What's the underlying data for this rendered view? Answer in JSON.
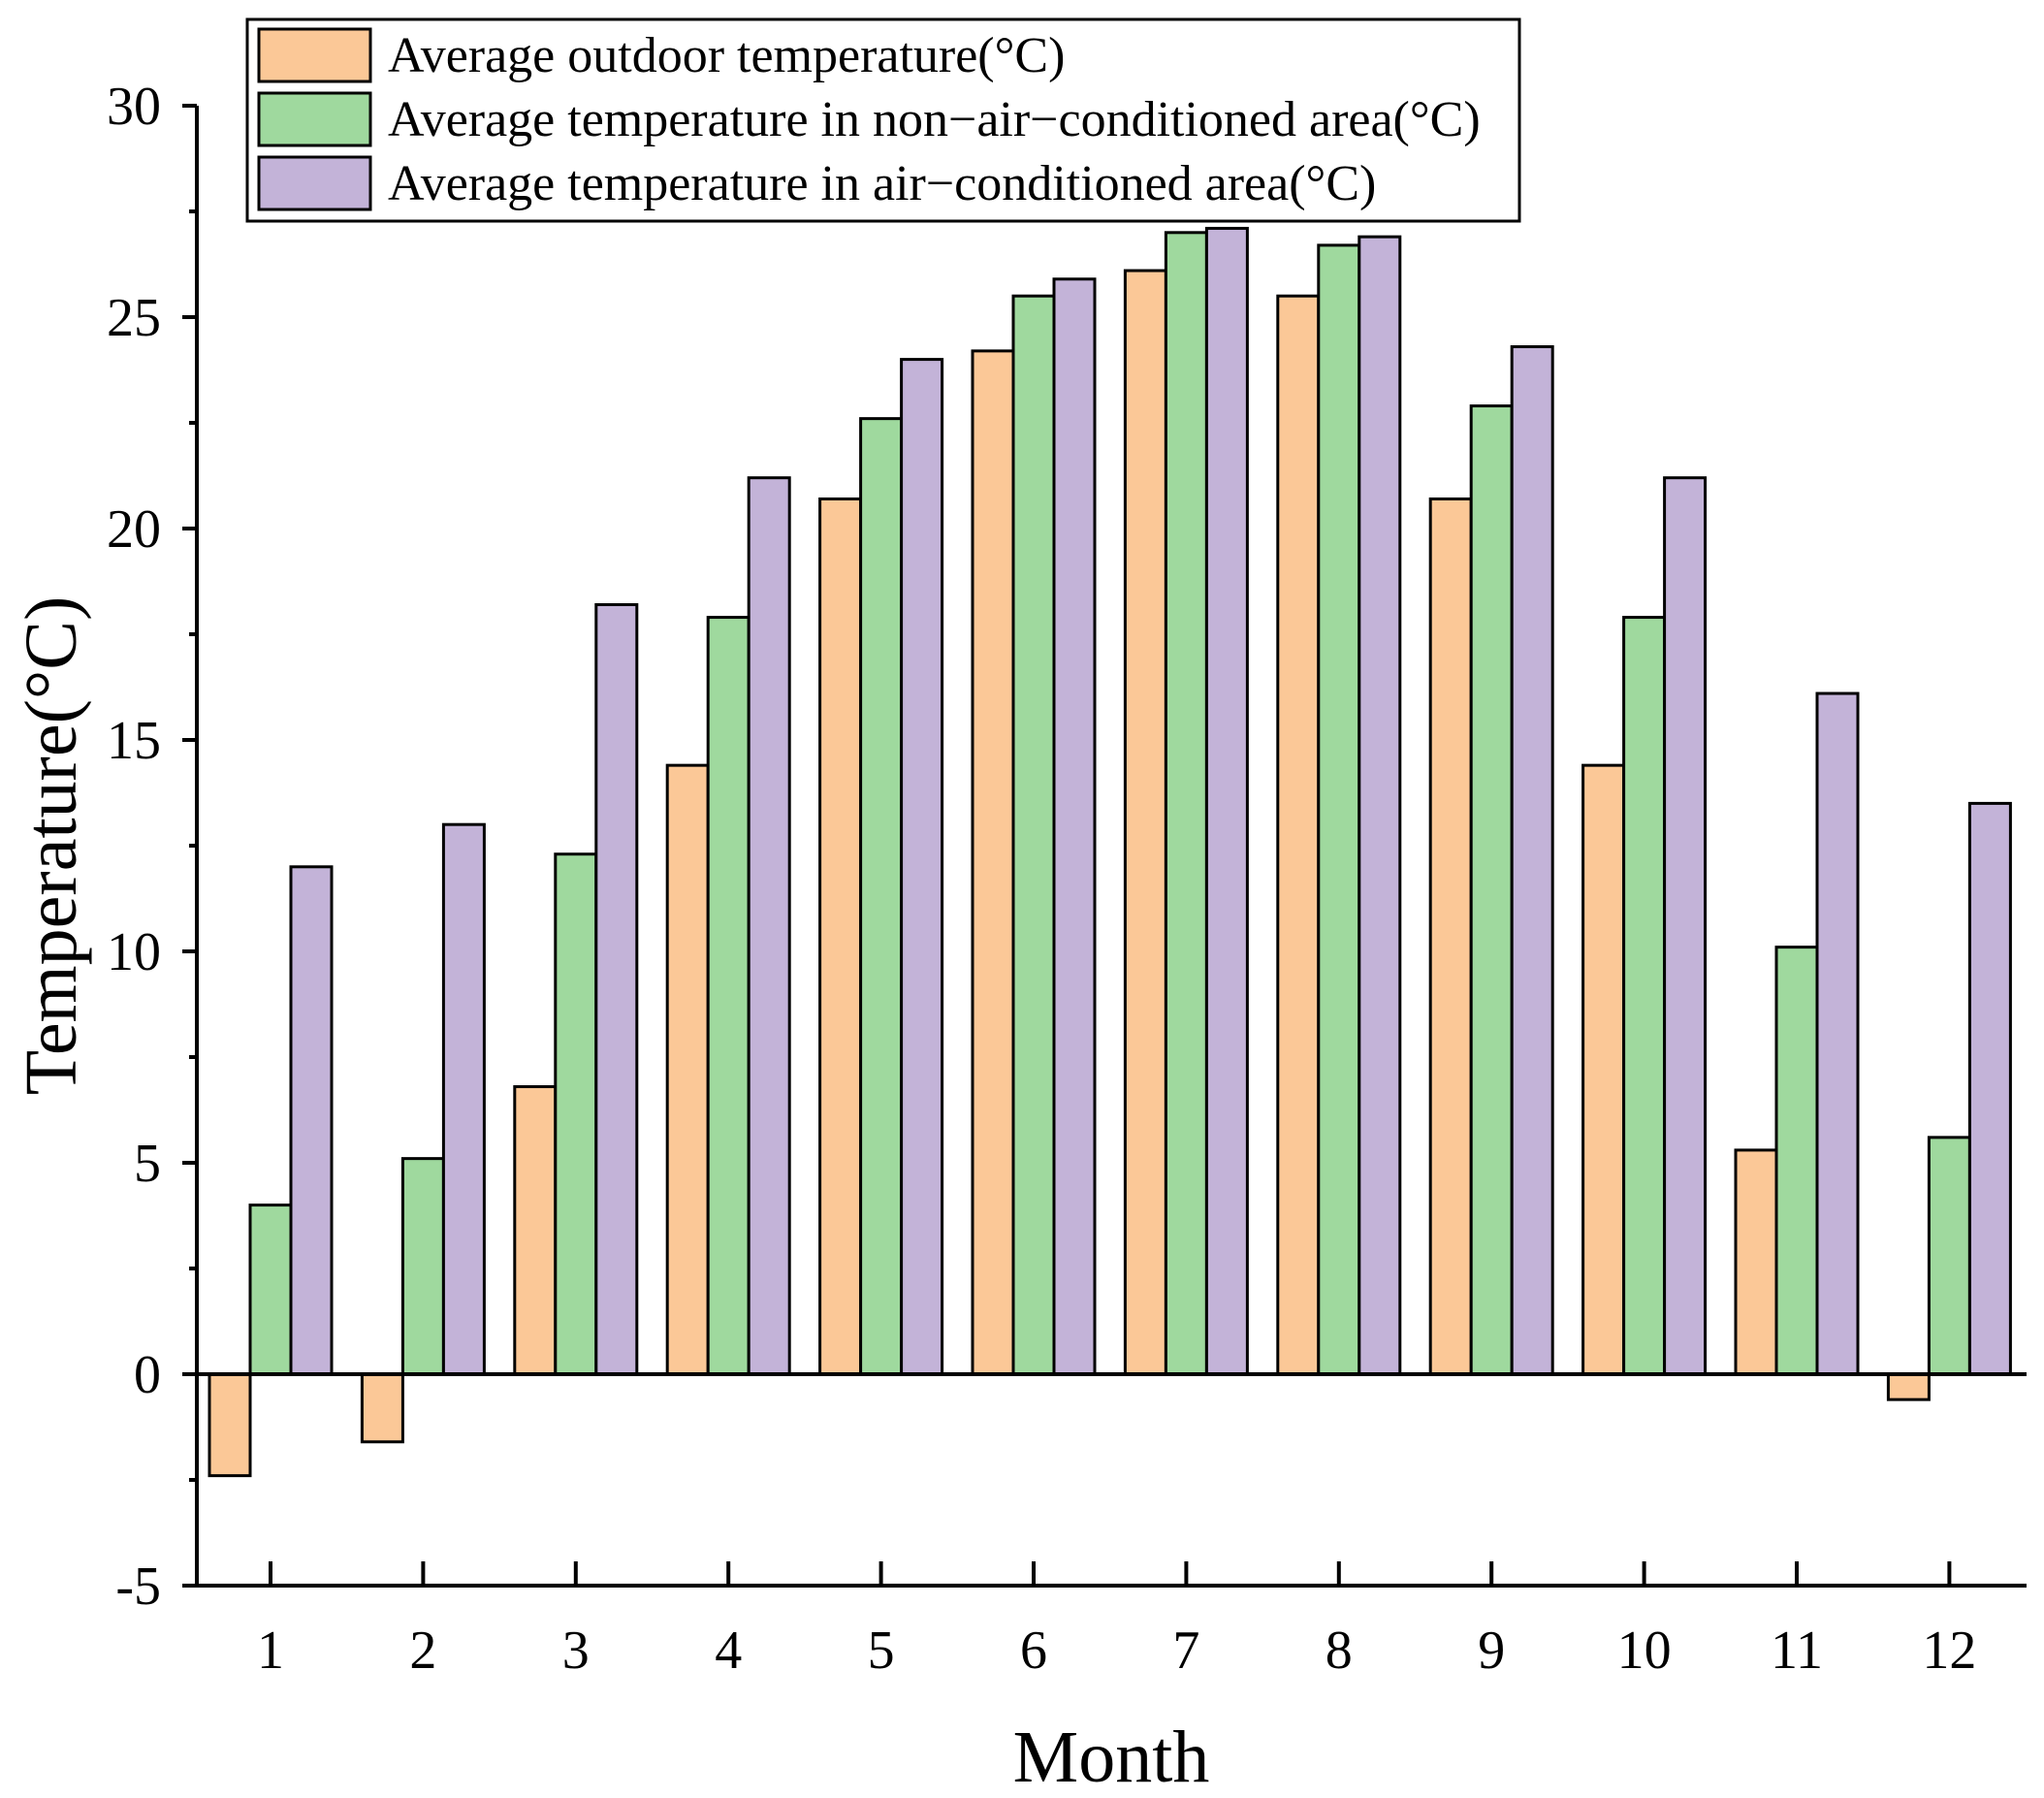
{
  "chart_data": {
    "type": "bar",
    "title": "",
    "xlabel": "Month",
    "ylabel": "Temperature(°C)",
    "ylim": [
      -5,
      30
    ],
    "yticks": [
      "-5",
      "0",
      "5",
      "10",
      "15",
      "20",
      "25",
      "30"
    ],
    "yticks_values": [
      -5,
      0,
      5,
      10,
      15,
      20,
      25,
      30
    ],
    "categories": [
      "1",
      "2",
      "3",
      "4",
      "5",
      "6",
      "7",
      "8",
      "9",
      "10",
      "11",
      "12"
    ],
    "grid": false,
    "legend_position": "top-left",
    "series": [
      {
        "name": "Average outdoor temperature(°C)",
        "color": "#FBC897",
        "values": [
          -2.4,
          -1.6,
          6.8,
          14.4,
          20.7,
          24.2,
          26.1,
          25.5,
          20.7,
          14.4,
          5.3,
          -0.6
        ]
      },
      {
        "name": "Average temperature in non−air−conditioned area(°C)",
        "color": "#9FD99E",
        "values": [
          4.0,
          5.1,
          12.3,
          17.9,
          22.6,
          25.5,
          27.0,
          26.7,
          22.9,
          17.9,
          10.1,
          5.6
        ]
      },
      {
        "name": "Average temperature in air−conditioned area(°C)",
        "color": "#C3B3D8",
        "values": [
          12.0,
          13.0,
          18.2,
          21.2,
          24.0,
          25.9,
          27.1,
          26.9,
          24.3,
          21.2,
          16.1,
          13.5
        ]
      }
    ]
  }
}
